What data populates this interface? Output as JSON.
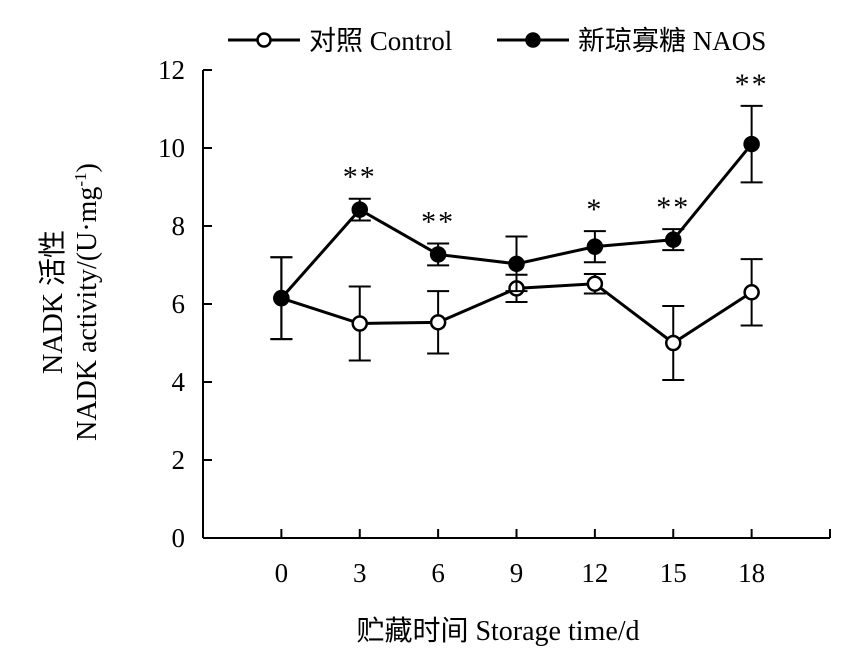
{
  "chart_data": {
    "type": "line",
    "x": [
      0,
      3,
      6,
      9,
      12,
      15,
      18
    ],
    "xlabel": "贮藏时间 Storage time/d",
    "ylabel_line1": "NADK 活性",
    "ylabel_line2_prefix": "NADK activity/(U·mg",
    "ylabel_line2_sup": "-1",
    "ylabel_line2_suffix": ")",
    "xlim": [
      -3,
      21
    ],
    "ylim": [
      0,
      12
    ],
    "xticks": [
      "0",
      "3",
      "6",
      "9",
      "12",
      "15",
      "18"
    ],
    "yticks": [
      "0",
      "2",
      "4",
      "6",
      "8",
      "10",
      "12"
    ],
    "grid": false,
    "legend_position": "top",
    "series": [
      {
        "name": "对照 Control",
        "marker": "open-circle",
        "values": [
          6.15,
          5.5,
          5.53,
          6.4,
          6.52,
          5.0,
          6.3
        ],
        "errors": [
          1.05,
          0.95,
          0.8,
          0.35,
          0.25,
          0.95,
          0.85
        ]
      },
      {
        "name": "新琼寡糖 NAOS",
        "marker": "filled-circle",
        "values": [
          6.15,
          8.42,
          7.27,
          7.03,
          7.47,
          7.65,
          10.1
        ],
        "errors": [
          1.05,
          0.28,
          0.28,
          0.7,
          0.4,
          0.27,
          0.98
        ]
      }
    ],
    "significance": [
      {
        "x": 3,
        "label": "**"
      },
      {
        "x": 6,
        "label": "**"
      },
      {
        "x": 12,
        "label": "*"
      },
      {
        "x": 15,
        "label": "**"
      },
      {
        "x": 18,
        "label": "**"
      }
    ]
  },
  "colors": {
    "line": "#000000",
    "open_marker_fill": "#ffffff",
    "filled_marker_fill": "#000000"
  }
}
